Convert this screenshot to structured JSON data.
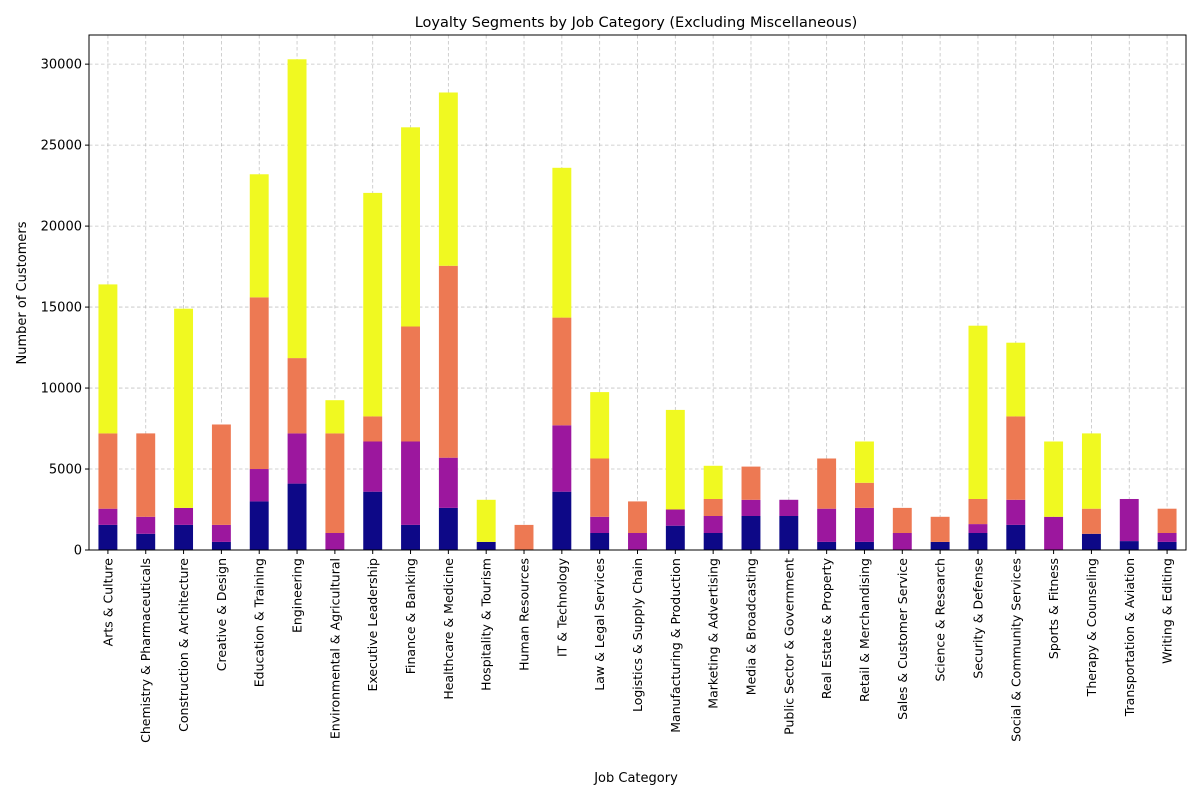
{
  "chart_data": {
    "type": "bar",
    "stacked": true,
    "title": "Loyalty Segments by Job Category (Excluding Miscellaneous)",
    "xlabel": "Job Category",
    "ylabel": "Number of Customers",
    "ylim": [
      0,
      31800
    ],
    "yticks": [
      0,
      5000,
      10000,
      15000,
      20000,
      25000,
      30000
    ],
    "grid": true,
    "legend": "none",
    "categories": [
      "Arts & Culture",
      "Chemistry & Pharmaceuticals",
      "Construction & Architecture",
      "Creative & Design",
      "Education & Training",
      "Engineering",
      "Environmental & Agricultural",
      "Executive Leadership",
      "Finance & Banking",
      "Healthcare & Medicine",
      "Hospitality & Tourism",
      "Human Resources",
      "IT & Technology",
      "Law & Legal Services",
      "Logistics & Supply Chain",
      "Manufacturing & Production",
      "Marketing & Advertising",
      "Media & Broadcasting",
      "Public Sector & Government",
      "Real Estate & Property",
      "Retail & Merchandising",
      "Sales & Customer Service",
      "Science & Research",
      "Security & Defense",
      "Social & Community Services",
      "Sports & Fitness",
      "Therapy & Counseling",
      "Transportation & Aviation",
      "Writing & Editing"
    ],
    "series": [
      {
        "color": "#0d0887",
        "values": [
          1550,
          1000,
          1550,
          500,
          3000,
          4100,
          0,
          3600,
          1550,
          2600,
          500,
          0,
          3600,
          1050,
          0,
          1500,
          1050,
          2100,
          2100,
          500,
          500,
          0,
          500,
          1050,
          1550,
          0,
          1000,
          550,
          500
        ]
      },
      {
        "color": "#9c179e",
        "values": [
          1000,
          1050,
          1050,
          1050,
          2000,
          3100,
          1050,
          3100,
          5150,
          3100,
          0,
          0,
          4100,
          1000,
          1050,
          1000,
          1050,
          1000,
          1000,
          2050,
          2100,
          1050,
          0,
          550,
          1550,
          2050,
          0,
          2600,
          550
        ]
      },
      {
        "color": "#ed7953",
        "values": [
          4650,
          5150,
          0,
          6200,
          10600,
          4650,
          6150,
          1550,
          7100,
          11850,
          0,
          1550,
          6650,
          3600,
          1950,
          0,
          1050,
          2050,
          0,
          3100,
          1550,
          1550,
          1550,
          1550,
          5150,
          0,
          1550,
          0,
          1500
        ]
      },
      {
        "color": "#f0f921",
        "values": [
          9200,
          0,
          12300,
          0,
          7600,
          18450,
          2050,
          13800,
          12300,
          10700,
          2600,
          0,
          9250,
          4100,
          0,
          6150,
          2050,
          0,
          0,
          0,
          2550,
          0,
          0,
          10700,
          4550,
          4650,
          4650,
          0,
          0
        ]
      }
    ]
  }
}
